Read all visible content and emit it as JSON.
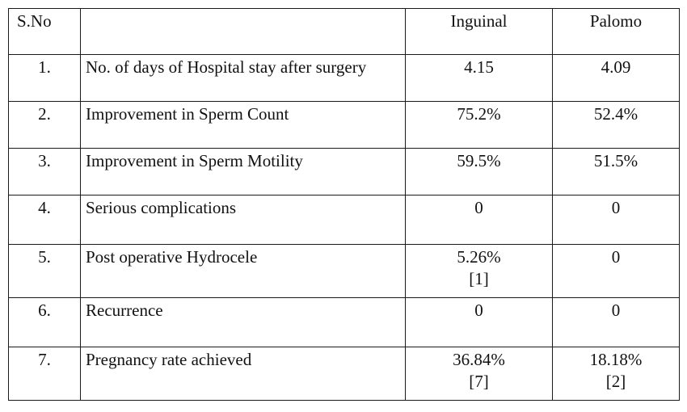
{
  "table": {
    "headers": {
      "sno": "S.No",
      "parameter": "",
      "inguinal": "Inguinal",
      "palomo": "Palomo"
    },
    "rows": [
      {
        "sno": "1.",
        "parameter": "No. of days of Hospital stay after surgery",
        "inguinal": "4.15",
        "inguinal_ref": "",
        "palomo": "4.09",
        "palomo_ref": ""
      },
      {
        "sno": "2.",
        "parameter": "Improvement in Sperm Count",
        "inguinal": "75.2%",
        "inguinal_ref": "",
        "palomo": "52.4%",
        "palomo_ref": ""
      },
      {
        "sno": "3.",
        "parameter": "Improvement in Sperm Motility",
        "inguinal": "59.5%",
        "inguinal_ref": "",
        "palomo": "51.5%",
        "palomo_ref": ""
      },
      {
        "sno": "4.",
        "parameter": "Serious complications",
        "inguinal": "0",
        "inguinal_ref": "",
        "palomo": "0",
        "palomo_ref": ""
      },
      {
        "sno": "5.",
        "parameter": "Post operative Hydrocele",
        "inguinal": "5.26%",
        "inguinal_ref": "[1]",
        "palomo": "0",
        "palomo_ref": ""
      },
      {
        "sno": "6.",
        "parameter": "Recurrence",
        "inguinal": "0",
        "inguinal_ref": "",
        "palomo": "0",
        "palomo_ref": ""
      },
      {
        "sno": "7.",
        "parameter": "Pregnancy rate achieved",
        "inguinal": "36.84%",
        "inguinal_ref": "[7]",
        "palomo": "18.18%",
        "palomo_ref": "[2]"
      }
    ]
  }
}
